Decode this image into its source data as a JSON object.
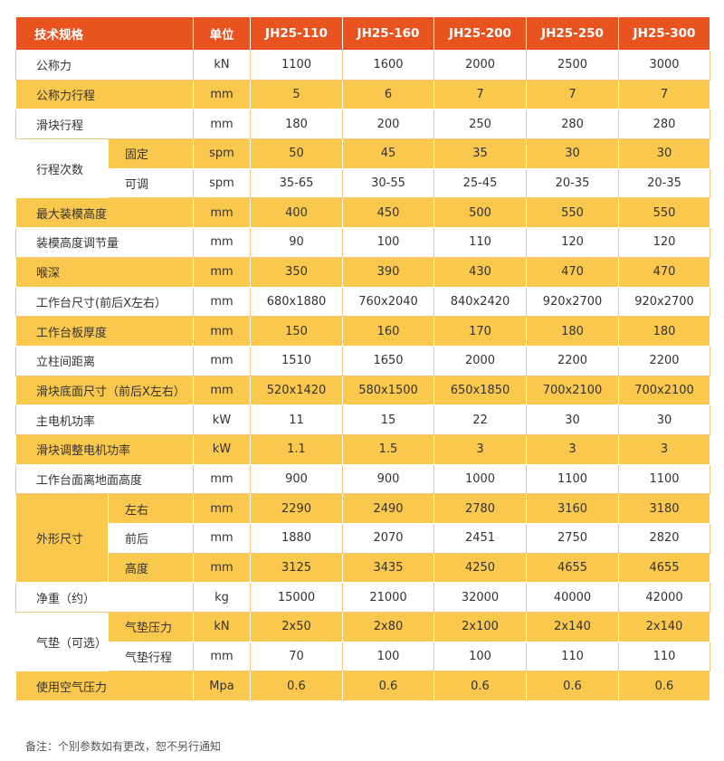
{
  "header": {
    "spec": "技术规格",
    "unit": "单位",
    "models": [
      "JH25-110",
      "JH25-160",
      "JH25-200",
      "JH25-250",
      "JH25-300"
    ]
  },
  "rows": [
    {
      "label": "公称力",
      "unit": "kN",
      "values": [
        "1100",
        "1600",
        "2000",
        "2500",
        "3000"
      ]
    },
    {
      "label": "公称力行程",
      "unit": "mm",
      "values": [
        "5",
        "6",
        "7",
        "7",
        "7"
      ]
    },
    {
      "label": "滑块行程",
      "unit": "mm",
      "values": [
        "180",
        "200",
        "250",
        "280",
        "280"
      ]
    },
    {
      "group": "行程次数",
      "label": "固定",
      "unit": "spm",
      "values": [
        "50",
        "45",
        "35",
        "30",
        "30"
      ]
    },
    {
      "group": "行程次数",
      "label": "可调",
      "unit": "spm",
      "values": [
        "35-65",
        "30-55",
        "25-45",
        "20-35",
        "20-35"
      ]
    },
    {
      "label": "最大装模高度",
      "unit": "mm",
      "values": [
        "400",
        "450",
        "500",
        "550",
        "550"
      ]
    },
    {
      "label": "装模高度调节量",
      "unit": "mm",
      "values": [
        "90",
        "100",
        "110",
        "120",
        "120"
      ]
    },
    {
      "label": "喉深",
      "unit": "mm",
      "values": [
        "350",
        "390",
        "430",
        "470",
        "470"
      ]
    },
    {
      "label": "工作台尺寸(前后X左右）",
      "unit": "mm",
      "values": [
        "680x1880",
        "760x2040",
        "840x2420",
        "920x2700",
        "920x2700"
      ]
    },
    {
      "label": "工作台板厚度",
      "unit": "mm",
      "values": [
        "150",
        "160",
        "170",
        "180",
        "180"
      ]
    },
    {
      "label": "立柱间距离",
      "unit": "mm",
      "values": [
        "1510",
        "1650",
        "2000",
        "2200",
        "2200"
      ]
    },
    {
      "label": "滑块底面尺寸（前后X左右）",
      "unit": "mm",
      "values": [
        "520x1420",
        "580x1500",
        "650x1850",
        "700x2100",
        "700x2100"
      ]
    },
    {
      "label": "主电机功率",
      "unit": "kW",
      "values": [
        "11",
        "15",
        "22",
        "30",
        "30"
      ]
    },
    {
      "label": "滑块调整电机功率",
      "unit": "kW",
      "values": [
        "1.1",
        "1.5",
        "3",
        "3",
        "3"
      ]
    },
    {
      "label": "工作台面离地面高度",
      "unit": "mm",
      "values": [
        "900",
        "900",
        "1000",
        "1100",
        "1100"
      ]
    },
    {
      "group": "外形尺寸",
      "label": "左右",
      "unit": "mm",
      "values": [
        "2290",
        "2490",
        "2780",
        "3160",
        "3180"
      ]
    },
    {
      "group": "外形尺寸",
      "label": "前后",
      "unit": "mm",
      "values": [
        "1880",
        "2070",
        "2451",
        "2750",
        "2820"
      ]
    },
    {
      "group": "外形尺寸",
      "label": "高度",
      "unit": "mm",
      "values": [
        "3125",
        "3435",
        "4250",
        "4655",
        "4655"
      ]
    },
    {
      "label": "净重（约）",
      "unit": "kg",
      "values": [
        "15000",
        "21000",
        "32000",
        "40000",
        "42000"
      ]
    },
    {
      "group": "气垫（可选）",
      "label": "气垫压力",
      "unit": "kN",
      "values": [
        "2x50",
        "2x80",
        "2x100",
        "2x140",
        "2x140"
      ]
    },
    {
      "group": "气垫（可选）",
      "label": "气垫行程",
      "unit": "mm",
      "values": [
        "70",
        "100",
        "100",
        "110",
        "110"
      ]
    },
    {
      "label": "使用空气压力",
      "unit": "Mpa",
      "values": [
        "0.6",
        "0.6",
        "0.6",
        "0.6",
        "0.6"
      ]
    }
  ],
  "note": "备注：个别参数如有更改，恕不另行通知",
  "colors": {
    "header": "#e8531f",
    "stripe": "#fbc84e",
    "white": "#ffffff"
  }
}
